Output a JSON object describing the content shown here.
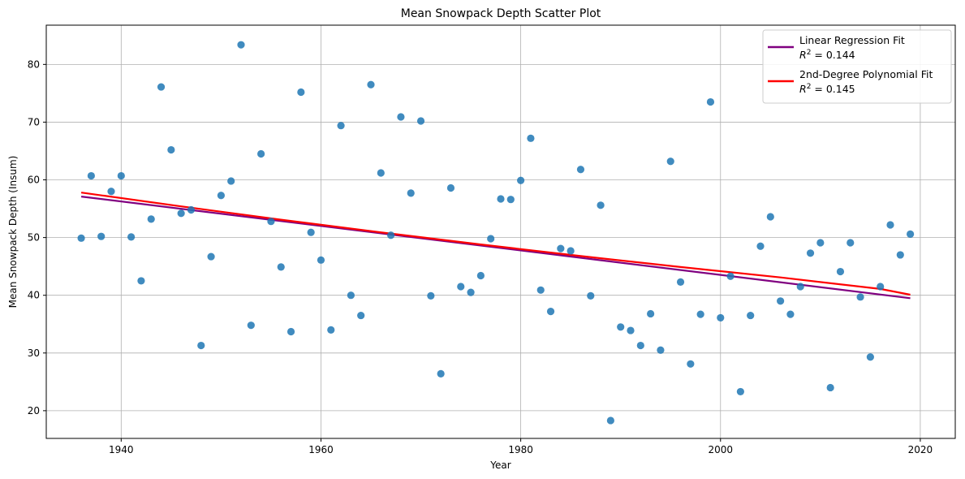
{
  "chart_data": {
    "type": "scatter",
    "title": "Mean Snowpack Depth Scatter Plot",
    "xlabel": "Year",
    "ylabel": "Mean Snowpack Depth (Insum)",
    "xlim": [
      1932.5,
      2023.5
    ],
    "ylim": [
      15.2,
      86.8
    ],
    "xticks": [
      1940,
      1960,
      1980,
      2000,
      2020
    ],
    "yticks": [
      20,
      30,
      40,
      50,
      60,
      70,
      80
    ],
    "grid": true,
    "legend_position": "top-right",
    "series": [
      {
        "kind": "scatter",
        "color": "#1f77b4",
        "x": [
          1936,
          1937,
          1938,
          1939,
          1940,
          1941,
          1942,
          1943,
          1944,
          1945,
          1946,
          1947,
          1948,
          1949,
          1950,
          1951,
          1952,
          1953,
          1954,
          1955,
          1956,
          1957,
          1958,
          1959,
          1960,
          1961,
          1962,
          1963,
          1964,
          1965,
          1966,
          1967,
          1968,
          1969,
          1970,
          1971,
          1972,
          1973,
          1974,
          1975,
          1976,
          1977,
          1978,
          1979,
          1980,
          1981,
          1982,
          1983,
          1984,
          1985,
          1986,
          1987,
          1988,
          1989,
          1990,
          1991,
          1992,
          1993,
          1994,
          1995,
          1996,
          1997,
          1998,
          1999,
          2000,
          2001,
          2002,
          2003,
          2004,
          2005,
          2006,
          2007,
          2008,
          2009,
          2010,
          2011,
          2012,
          2013,
          2014,
          2015,
          2016,
          2017,
          2018,
          2019
        ],
        "y": [
          49.9,
          60.7,
          50.2,
          58.0,
          60.7,
          50.1,
          42.5,
          53.2,
          76.1,
          65.2,
          54.2,
          54.8,
          31.3,
          46.7,
          57.3,
          59.8,
          83.4,
          34.8,
          64.5,
          52.8,
          44.9,
          33.7,
          75.2,
          50.9,
          46.1,
          34.0,
          69.4,
          40.0,
          36.5,
          76.5,
          61.2,
          50.4,
          70.9,
          57.7,
          70.2,
          39.9,
          26.4,
          58.6,
          41.5,
          40.5,
          43.4,
          49.8,
          56.7,
          56.6,
          59.9,
          67.2,
          40.9,
          37.2,
          48.1,
          47.7,
          61.8,
          39.9,
          55.6,
          18.3,
          34.5,
          33.9,
          31.3,
          36.8,
          30.5,
          63.2,
          42.3,
          28.1,
          36.7,
          73.5,
          36.1,
          43.3,
          23.3,
          36.5,
          48.5,
          53.6,
          39.0,
          36.7,
          41.5,
          47.3,
          49.1,
          24.0,
          44.1,
          49.1,
          39.7,
          29.3,
          41.5,
          52.2,
          47.0,
          50.6
        ]
      },
      {
        "name": "Linear Regression Fit",
        "r2_label": "= 0.144",
        "kind": "line",
        "color": "#800080",
        "x": [
          1936,
          2019
        ],
        "y": [
          57.1,
          39.5
        ]
      },
      {
        "name": "2nd-Degree Polynomial Fit",
        "r2_label": "= 0.145",
        "kind": "line",
        "color": "#ff0000",
        "x": [
          1936,
          1946,
          1956,
          1966,
          1976,
          1986,
          1996,
          2006,
          2016,
          2019
        ],
        "y": [
          57.8,
          55.4,
          53.1,
          50.9,
          48.8,
          46.8,
          44.9,
          43.1,
          41.1,
          40.1
        ]
      }
    ]
  }
}
